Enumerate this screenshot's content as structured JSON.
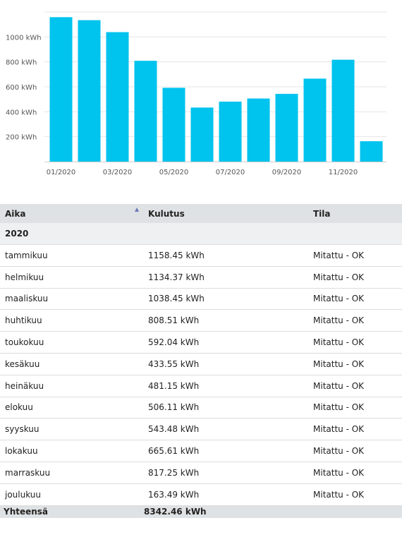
{
  "chart_data": {
    "type": "bar",
    "categories": [
      "01/2020",
      "02/2020",
      "03/2020",
      "04/2020",
      "05/2020",
      "06/2020",
      "07/2020",
      "08/2020",
      "09/2020",
      "10/2020",
      "11/2020",
      "12/2020"
    ],
    "x_tick_labels": [
      "01/2020",
      "",
      "03/2020",
      "",
      "05/2020",
      "",
      "07/2020",
      "",
      "09/2020",
      "",
      "11/2020",
      ""
    ],
    "values": [
      1158.45,
      1134.37,
      1038.45,
      808.51,
      592.04,
      433.55,
      481.15,
      506.11,
      543.48,
      665.61,
      817.25,
      163.49
    ],
    "y_ticks": [
      200,
      400,
      600,
      800,
      1000
    ],
    "y_tick_labels": [
      "200 kWh",
      "400 kWh",
      "600 kWh",
      "800 kWh",
      "1000 kWh"
    ],
    "ylim": [
      0,
      1200
    ],
    "grid": true,
    "bar_color": "#00c3ee",
    "title": "",
    "xlabel": "",
    "ylabel": ""
  },
  "table": {
    "headers": {
      "time": "Aika",
      "consumption": "Kulutus",
      "status": "Tila"
    },
    "group_label": "2020",
    "rows": [
      {
        "month": "tammikuu",
        "consumption": "1158.45 kWh",
        "status": "Mitattu - OK"
      },
      {
        "month": "helmikuu",
        "consumption": "1134.37 kWh",
        "status": "Mitattu - OK"
      },
      {
        "month": "maaliskuu",
        "consumption": "1038.45 kWh",
        "status": "Mitattu - OK"
      },
      {
        "month": "huhtikuu",
        "consumption": "808.51 kWh",
        "status": "Mitattu - OK"
      },
      {
        "month": "toukokuu",
        "consumption": "592.04 kWh",
        "status": "Mitattu - OK"
      },
      {
        "month": "kesäkuu",
        "consumption": "433.55 kWh",
        "status": "Mitattu - OK"
      },
      {
        "month": "heinäkuu",
        "consumption": "481.15 kWh",
        "status": "Mitattu - OK"
      },
      {
        "month": "elokuu",
        "consumption": "506.11 kWh",
        "status": "Mitattu - OK"
      },
      {
        "month": "syyskuu",
        "consumption": "543.48 kWh",
        "status": "Mitattu - OK"
      },
      {
        "month": "lokakuu",
        "consumption": "665.61 kWh",
        "status": "Mitattu - OK"
      },
      {
        "month": "marraskuu",
        "consumption": "817.25 kWh",
        "status": "Mitattu - OK"
      },
      {
        "month": "joulukuu",
        "consumption": "163.49 kWh",
        "status": "Mitattu - OK"
      }
    ],
    "total": {
      "label": "Yhteensä",
      "value": "8342.46 kWh"
    },
    "sort_icon": "sort-ascending-icon"
  }
}
